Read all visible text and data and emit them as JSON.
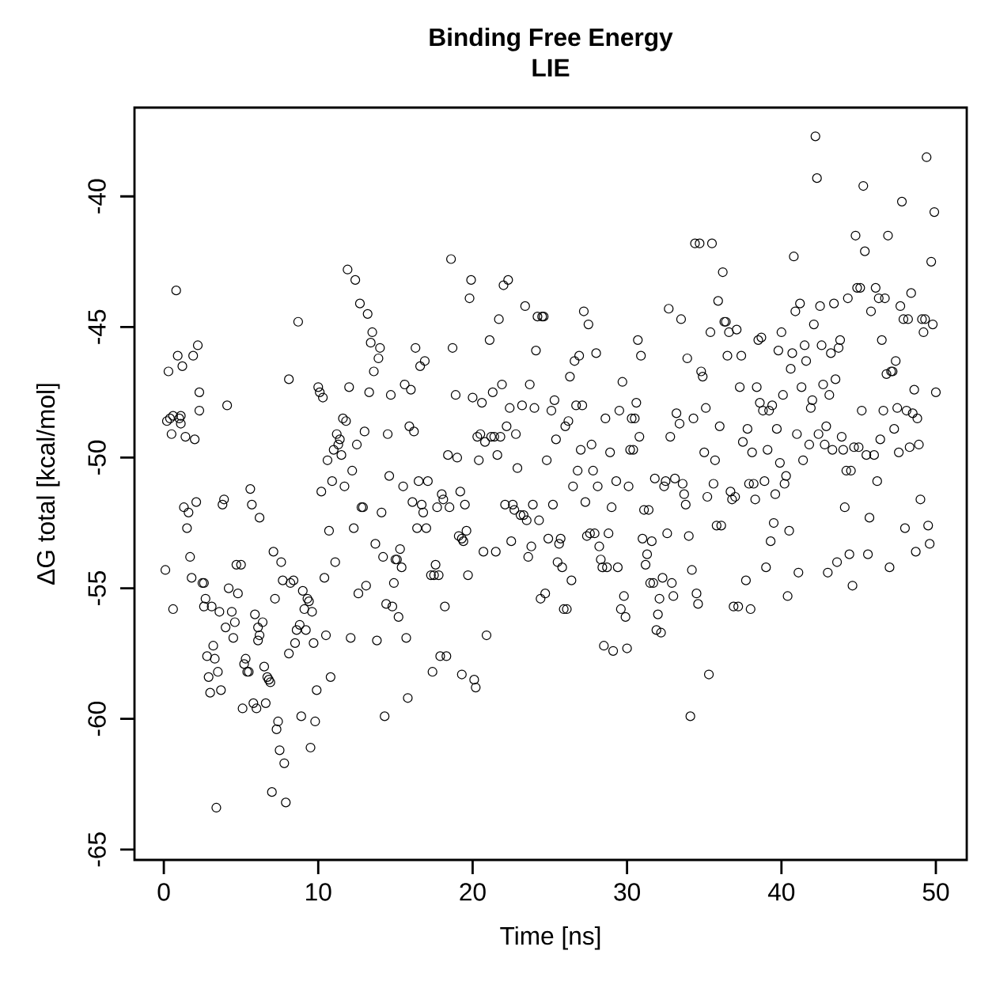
{
  "chart_data": {
    "type": "scatter",
    "title": "Binding Free Energy",
    "subtitle": "LIE",
    "xlabel": "Time [ns]",
    "ylabel": "ΔG total [kcal/mol]",
    "color": "#000000",
    "marker": "circle",
    "xlim": [
      -1.9,
      52
    ],
    "ylim": [
      -65.4,
      -36.6
    ],
    "xticks": [
      0,
      10,
      20,
      30,
      40,
      50
    ],
    "yticks": [
      -65,
      -60,
      -55,
      -50,
      -45,
      -40
    ],
    "x": [
      0.1,
      0.2,
      0.3,
      0.4,
      0.5,
      0.6,
      0.6,
      0.8,
      0.9,
      1.0,
      1.1,
      1.1,
      1.2,
      1.3,
      1.4,
      1.5,
      1.6,
      1.7,
      1.8,
      1.9,
      2.0,
      2.1,
      2.2,
      2.3,
      2.3,
      2.5,
      2.6,
      2.6,
      2.7,
      2.8,
      2.9,
      3.0,
      3.1,
      3.2,
      3.3,
      3.4,
      3.5,
      3.6,
      3.7,
      3.8,
      3.9,
      4.0,
      4.1,
      4.2,
      4.4,
      4.5,
      4.6,
      4.7,
      4.8,
      5.0,
      5.1,
      5.2,
      5.3,
      5.4,
      5.5,
      5.6,
      5.7,
      5.8,
      5.9,
      6.0,
      6.1,
      6.1,
      6.2,
      6.2,
      6.4,
      6.5,
      6.6,
      6.7,
      6.8,
      6.9,
      7.0,
      7.1,
      7.2,
      7.3,
      7.4,
      7.5,
      7.6,
      7.7,
      7.8,
      7.9,
      8.1,
      8.1,
      8.2,
      8.4,
      8.5,
      8.6,
      8.7,
      8.8,
      8.9,
      9.0,
      9.1,
      9.2,
      9.3,
      9.4,
      9.5,
      9.6,
      9.7,
      9.8,
      9.9,
      10.0,
      10.1,
      10.2,
      10.3,
      10.4,
      10.5,
      10.6,
      10.7,
      10.8,
      10.9,
      11.0,
      11.1,
      11.2,
      11.3,
      11.4,
      11.5,
      11.6,
      11.7,
      11.8,
      11.9,
      12.0,
      12.1,
      12.2,
      12.3,
      12.4,
      12.5,
      12.6,
      12.7,
      12.8,
      12.9,
      13.0,
      13.1,
      13.2,
      13.3,
      13.4,
      13.5,
      13.6,
      13.7,
      13.8,
      13.9,
      14.0,
      14.1,
      14.2,
      14.3,
      14.4,
      14.5,
      14.6,
      14.7,
      14.8,
      14.9,
      15.0,
      15.1,
      15.2,
      15.3,
      15.4,
      15.5,
      15.6,
      15.7,
      15.8,
      15.9,
      16.0,
      16.1,
      16.2,
      16.3,
      16.4,
      16.5,
      16.6,
      16.7,
      16.8,
      16.9,
      17.0,
      17.1,
      17.3,
      17.4,
      17.5,
      17.6,
      17.7,
      17.8,
      17.9,
      18.0,
      18.1,
      18.2,
      18.3,
      18.4,
      18.5,
      18.6,
      18.7,
      18.9,
      19.0,
      19.1,
      19.2,
      19.3,
      19.3,
      19.4,
      19.5,
      19.6,
      19.7,
      19.8,
      19.9,
      20.0,
      20.1,
      20.2,
      20.3,
      20.4,
      20.5,
      20.6,
      20.7,
      20.8,
      20.9,
      21.1,
      21.2,
      21.3,
      21.4,
      21.5,
      21.6,
      21.7,
      21.8,
      21.9,
      22.0,
      22.1,
      22.2,
      22.3,
      22.4,
      22.5,
      22.6,
      22.7,
      22.8,
      22.9,
      23.1,
      23.2,
      23.3,
      23.4,
      23.5,
      23.6,
      23.7,
      23.8,
      23.9,
      24.0,
      24.1,
      24.2,
      24.3,
      24.4,
      24.5,
      24.6,
      24.7,
      24.8,
      24.9,
      25.1,
      25.2,
      25.3,
      25.4,
      25.5,
      25.6,
      25.7,
      25.8,
      25.9,
      26.0,
      26.1,
      26.2,
      26.3,
      26.4,
      26.5,
      26.6,
      26.7,
      26.8,
      26.9,
      27.0,
      27.1,
      27.2,
      27.3,
      27.4,
      27.5,
      27.6,
      27.7,
      27.8,
      27.9,
      28.0,
      28.1,
      28.2,
      28.3,
      28.4,
      28.5,
      28.6,
      28.7,
      28.8,
      28.9,
      29.0,
      29.1,
      29.3,
      29.4,
      29.5,
      29.6,
      29.7,
      29.8,
      29.9,
      30.0,
      30.1,
      30.2,
      30.3,
      30.4,
      30.5,
      30.6,
      30.7,
      30.8,
      30.9,
      31.0,
      31.1,
      31.2,
      31.3,
      31.4,
      31.5,
      31.6,
      31.7,
      31.8,
      31.9,
      32.0,
      32.1,
      32.2,
      32.3,
      32.4,
      32.5,
      32.6,
      32.7,
      32.8,
      32.9,
      33.0,
      33.1,
      33.2,
      33.4,
      33.5,
      33.6,
      33.7,
      33.8,
      33.9,
      34.0,
      34.1,
      34.2,
      34.3,
      34.4,
      34.5,
      34.6,
      34.7,
      34.8,
      34.9,
      35.0,
      35.1,
      35.2,
      35.3,
      35.4,
      35.5,
      35.6,
      35.7,
      35.8,
      35.9,
      36.0,
      36.1,
      36.2,
      36.3,
      36.4,
      36.5,
      36.6,
      36.7,
      36.8,
      36.9,
      37.0,
      37.1,
      37.2,
      37.3,
      37.4,
      37.5,
      37.7,
      37.8,
      37.9,
      38.0,
      38.1,
      38.2,
      38.3,
      38.4,
      38.5,
      38.6,
      38.7,
      38.8,
      38.9,
      39.0,
      39.1,
      39.2,
      39.3,
      39.4,
      39.5,
      39.6,
      39.7,
      39.8,
      39.9,
      40.0,
      40.1,
      40.2,
      40.3,
      40.4,
      40.5,
      40.6,
      40.7,
      40.8,
      40.9,
      41.0,
      41.1,
      41.2,
      41.3,
      41.4,
      41.5,
      41.6,
      41.8,
      41.9,
      42.0,
      42.1,
      42.2,
      42.3,
      42.4,
      42.5,
      42.6,
      42.7,
      42.8,
      42.9,
      43.0,
      43.1,
      43.2,
      43.3,
      43.4,
      43.5,
      43.6,
      43.7,
      43.8,
      43.9,
      44.0,
      44.1,
      44.2,
      44.3,
      44.4,
      44.5,
      44.6,
      44.7,
      44.8,
      44.9,
      45.0,
      45.1,
      45.2,
      45.3,
      45.4,
      45.5,
      45.6,
      45.7,
      45.8,
      46.0,
      46.1,
      46.2,
      46.3,
      46.4,
      46.5,
      46.6,
      46.7,
      46.8,
      46.9,
      47.0,
      47.1,
      47.2,
      47.3,
      47.4,
      47.5,
      47.6,
      47.7,
      47.8,
      47.9,
      48.0,
      48.1,
      48.2,
      48.3,
      48.4,
      48.5,
      48.6,
      48.7,
      48.8,
      48.9,
      49.0,
      49.1,
      49.2,
      49.3,
      49.4,
      49.5,
      49.6,
      49.7,
      49.8,
      49.9,
      50.0
    ],
    "values": [
      -54.3,
      -48.6,
      -46.7,
      -48.5,
      -49.1,
      -48.4,
      -55.8,
      -43.6,
      -46.1,
      -48.5,
      -48.7,
      -48.4,
      -46.5,
      -51.9,
      -49.2,
      -52.7,
      -52.1,
      -53.8,
      -54.6,
      -46.1,
      -49.3,
      -51.7,
      -45.7,
      -48.2,
      -47.5,
      -54.8,
      -54.8,
      -55.7,
      -55.4,
      -57.6,
      -58.4,
      -59.0,
      -55.7,
      -57.2,
      -57.7,
      -63.4,
      -58.2,
      -55.9,
      -58.9,
      -51.8,
      -51.6,
      -56.5,
      -48.0,
      -55.0,
      -55.9,
      -56.9,
      -56.3,
      -54.1,
      -55.2,
      -54.1,
      -59.6,
      -57.9,
      -57.7,
      -58.2,
      -58.2,
      -51.2,
      -51.8,
      -59.4,
      -56.0,
      -59.6,
      -56.5,
      -57.0,
      -52.3,
      -56.8,
      -56.3,
      -58.0,
      -59.4,
      -58.4,
      -58.5,
      -58.6,
      -62.8,
      -53.6,
      -55.4,
      -60.4,
      -60.1,
      -61.2,
      -54.0,
      -54.7,
      -61.7,
      -63.2,
      -57.5,
      -47.0,
      -54.8,
      -54.7,
      -57.1,
      -56.6,
      -44.8,
      -56.4,
      -59.9,
      -55.1,
      -55.8,
      -56.6,
      -55.4,
      -55.5,
      -61.1,
      -55.9,
      -57.1,
      -60.1,
      -58.9,
      -47.3,
      -47.5,
      -51.3,
      -47.7,
      -54.6,
      -56.8,
      -50.1,
      -52.8,
      -58.4,
      -50.9,
      -49.7,
      -54.0,
      -49.1,
      -49.5,
      -49.3,
      -49.9,
      -48.5,
      -51.1,
      -48.6,
      -42.8,
      -47.3,
      -56.9,
      -50.5,
      -52.7,
      -43.2,
      -49.5,
      -55.2,
      -44.1,
      -51.9,
      -51.9,
      -49.0,
      -54.9,
      -44.5,
      -47.5,
      -45.6,
      -45.2,
      -46.7,
      -53.3,
      -57.0,
      -46.2,
      -45.8,
      -52.1,
      -53.8,
      -59.9,
      -55.6,
      -49.1,
      -50.7,
      -47.6,
      -55.7,
      -54.8,
      -53.9,
      -53.9,
      -56.1,
      -53.5,
      -54.2,
      -51.1,
      -47.2,
      -56.9,
      -59.2,
      -48.8,
      -47.4,
      -51.7,
      -49.0,
      -45.8,
      -52.7,
      -50.9,
      -46.5,
      -51.8,
      -52.1,
      -46.3,
      -52.7,
      -50.9,
      -54.5,
      -58.2,
      -54.5,
      -54.1,
      -51.9,
      -54.5,
      -57.6,
      -51.4,
      -51.6,
      -55.7,
      -57.6,
      -49.9,
      -51.9,
      -42.4,
      -45.8,
      -47.6,
      -50.0,
      -53.0,
      -51.3,
      -53.1,
      -58.3,
      -53.2,
      -51.8,
      -52.8,
      -54.5,
      -43.9,
      -43.2,
      -47.7,
      -58.5,
      -58.8,
      -49.2,
      -50.1,
      -49.1,
      -47.9,
      -53.6,
      -49.4,
      -56.8,
      -45.5,
      -49.2,
      -47.5,
      -49.2,
      -53.6,
      -49.9,
      -44.7,
      -49.2,
      -47.2,
      -43.4,
      -51.8,
      -48.8,
      -43.2,
      -48.1,
      -53.2,
      -51.8,
      -52.0,
      -49.1,
      -50.4,
      -52.2,
      -48.0,
      -52.2,
      -44.2,
      -52.4,
      -53.8,
      -47.2,
      -53.4,
      -51.8,
      -48.1,
      -45.9,
      -44.6,
      -52.4,
      -55.4,
      -44.6,
      -44.6,
      -55.2,
      -50.1,
      -53.1,
      -48.2,
      -51.8,
      -47.8,
      -49.3,
      -54.0,
      -53.3,
      -53.1,
      -54.2,
      -55.8,
      -48.8,
      -55.8,
      -48.6,
      -46.9,
      -54.7,
      -51.1,
      -46.3,
      -48.0,
      -50.5,
      -46.1,
      -49.7,
      -48.0,
      -44.4,
      -51.7,
      -53.0,
      -44.9,
      -52.9,
      -49.5,
      -50.5,
      -52.9,
      -46.0,
      -51.1,
      -53.4,
      -53.9,
      -54.2,
      -57.2,
      -48.5,
      -54.2,
      -52.9,
      -49.8,
      -51.9,
      -57.4,
      -50.9,
      -54.2,
      -48.2,
      -55.8,
      -47.1,
      -55.3,
      -56.1,
      -57.3,
      -51.1,
      -49.7,
      -48.5,
      -49.7,
      -48.5,
      -47.9,
      -45.5,
      -49.2,
      -46.1,
      -53.1,
      -52.0,
      -54.1,
      -53.7,
      -52.0,
      -54.8,
      -53.2,
      -54.8,
      -50.8,
      -56.6,
      -56.0,
      -55.4,
      -56.7,
      -54.6,
      -51.1,
      -50.9,
      -52.9,
      -44.3,
      -49.2,
      -54.8,
      -55.3,
      -50.8,
      -48.3,
      -48.7,
      -44.7,
      -51.0,
      -51.4,
      -51.8,
      -46.2,
      -53.0,
      -59.9,
      -54.3,
      -48.5,
      -41.8,
      -55.2,
      -55.6,
      -41.8,
      -46.7,
      -46.9,
      -49.8,
      -48.1,
      -51.5,
      -58.3,
      -45.2,
      -41.8,
      -51.0,
      -50.1,
      -52.6,
      -44.0,
      -48.8,
      -52.6,
      -42.9,
      -44.8,
      -44.8,
      -46.1,
      -45.2,
      -51.3,
      -51.6,
      -55.7,
      -51.5,
      -45.1,
      -55.7,
      -47.3,
      -46.1,
      -49.4,
      -54.7,
      -48.9,
      -51.0,
      -55.8,
      -49.8,
      -51.0,
      -51.6,
      -47.3,
      -45.5,
      -47.9,
      -45.4,
      -48.2,
      -50.9,
      -54.2,
      -49.7,
      -48.2,
      -53.2,
      -48.0,
      -52.5,
      -51.4,
      -48.9,
      -45.9,
      -50.2,
      -45.2,
      -47.6,
      -51.0,
      -50.7,
      -55.3,
      -52.8,
      -46.6,
      -46.0,
      -42.3,
      -44.4,
      -49.1,
      -54.4,
      -44.1,
      -47.3,
      -50.1,
      -45.7,
      -46.3,
      -49.5,
      -48.1,
      -47.8,
      -44.9,
      -37.7,
      -39.3,
      -49.1,
      -44.2,
      -45.7,
      -47.2,
      -49.5,
      -48.8,
      -54.4,
      -47.6,
      -46.0,
      -49.7,
      -44.1,
      -47.0,
      -54.0,
      -45.8,
      -45.5,
      -49.2,
      -49.7,
      -51.9,
      -50.5,
      -43.9,
      -53.7,
      -50.5,
      -54.9,
      -49.6,
      -41.5,
      -43.5,
      -49.6,
      -43.5,
      -48.2,
      -39.6,
      -42.1,
      -49.9,
      -53.7,
      -52.3,
      -44.4,
      -49.9,
      -43.5,
      -50.9,
      -43.9,
      -49.3,
      -45.5,
      -48.2,
      -43.9,
      -46.8,
      -41.5,
      -54.2,
      -46.7,
      -46.7,
      -48.9,
      -46.3,
      -48.1,
      -49.8,
      -44.2,
      -40.2,
      -44.7,
      -52.7,
      -48.2,
      -44.7,
      -49.6,
      -43.7,
      -48.3,
      -47.4,
      -53.6,
      -48.5,
      -49.5,
      -51.6,
      -44.7,
      -45.2,
      -44.7,
      -38.5,
      -52.6,
      -53.3,
      -42.5,
      -44.9,
      -40.6,
      -47.5
    ]
  }
}
